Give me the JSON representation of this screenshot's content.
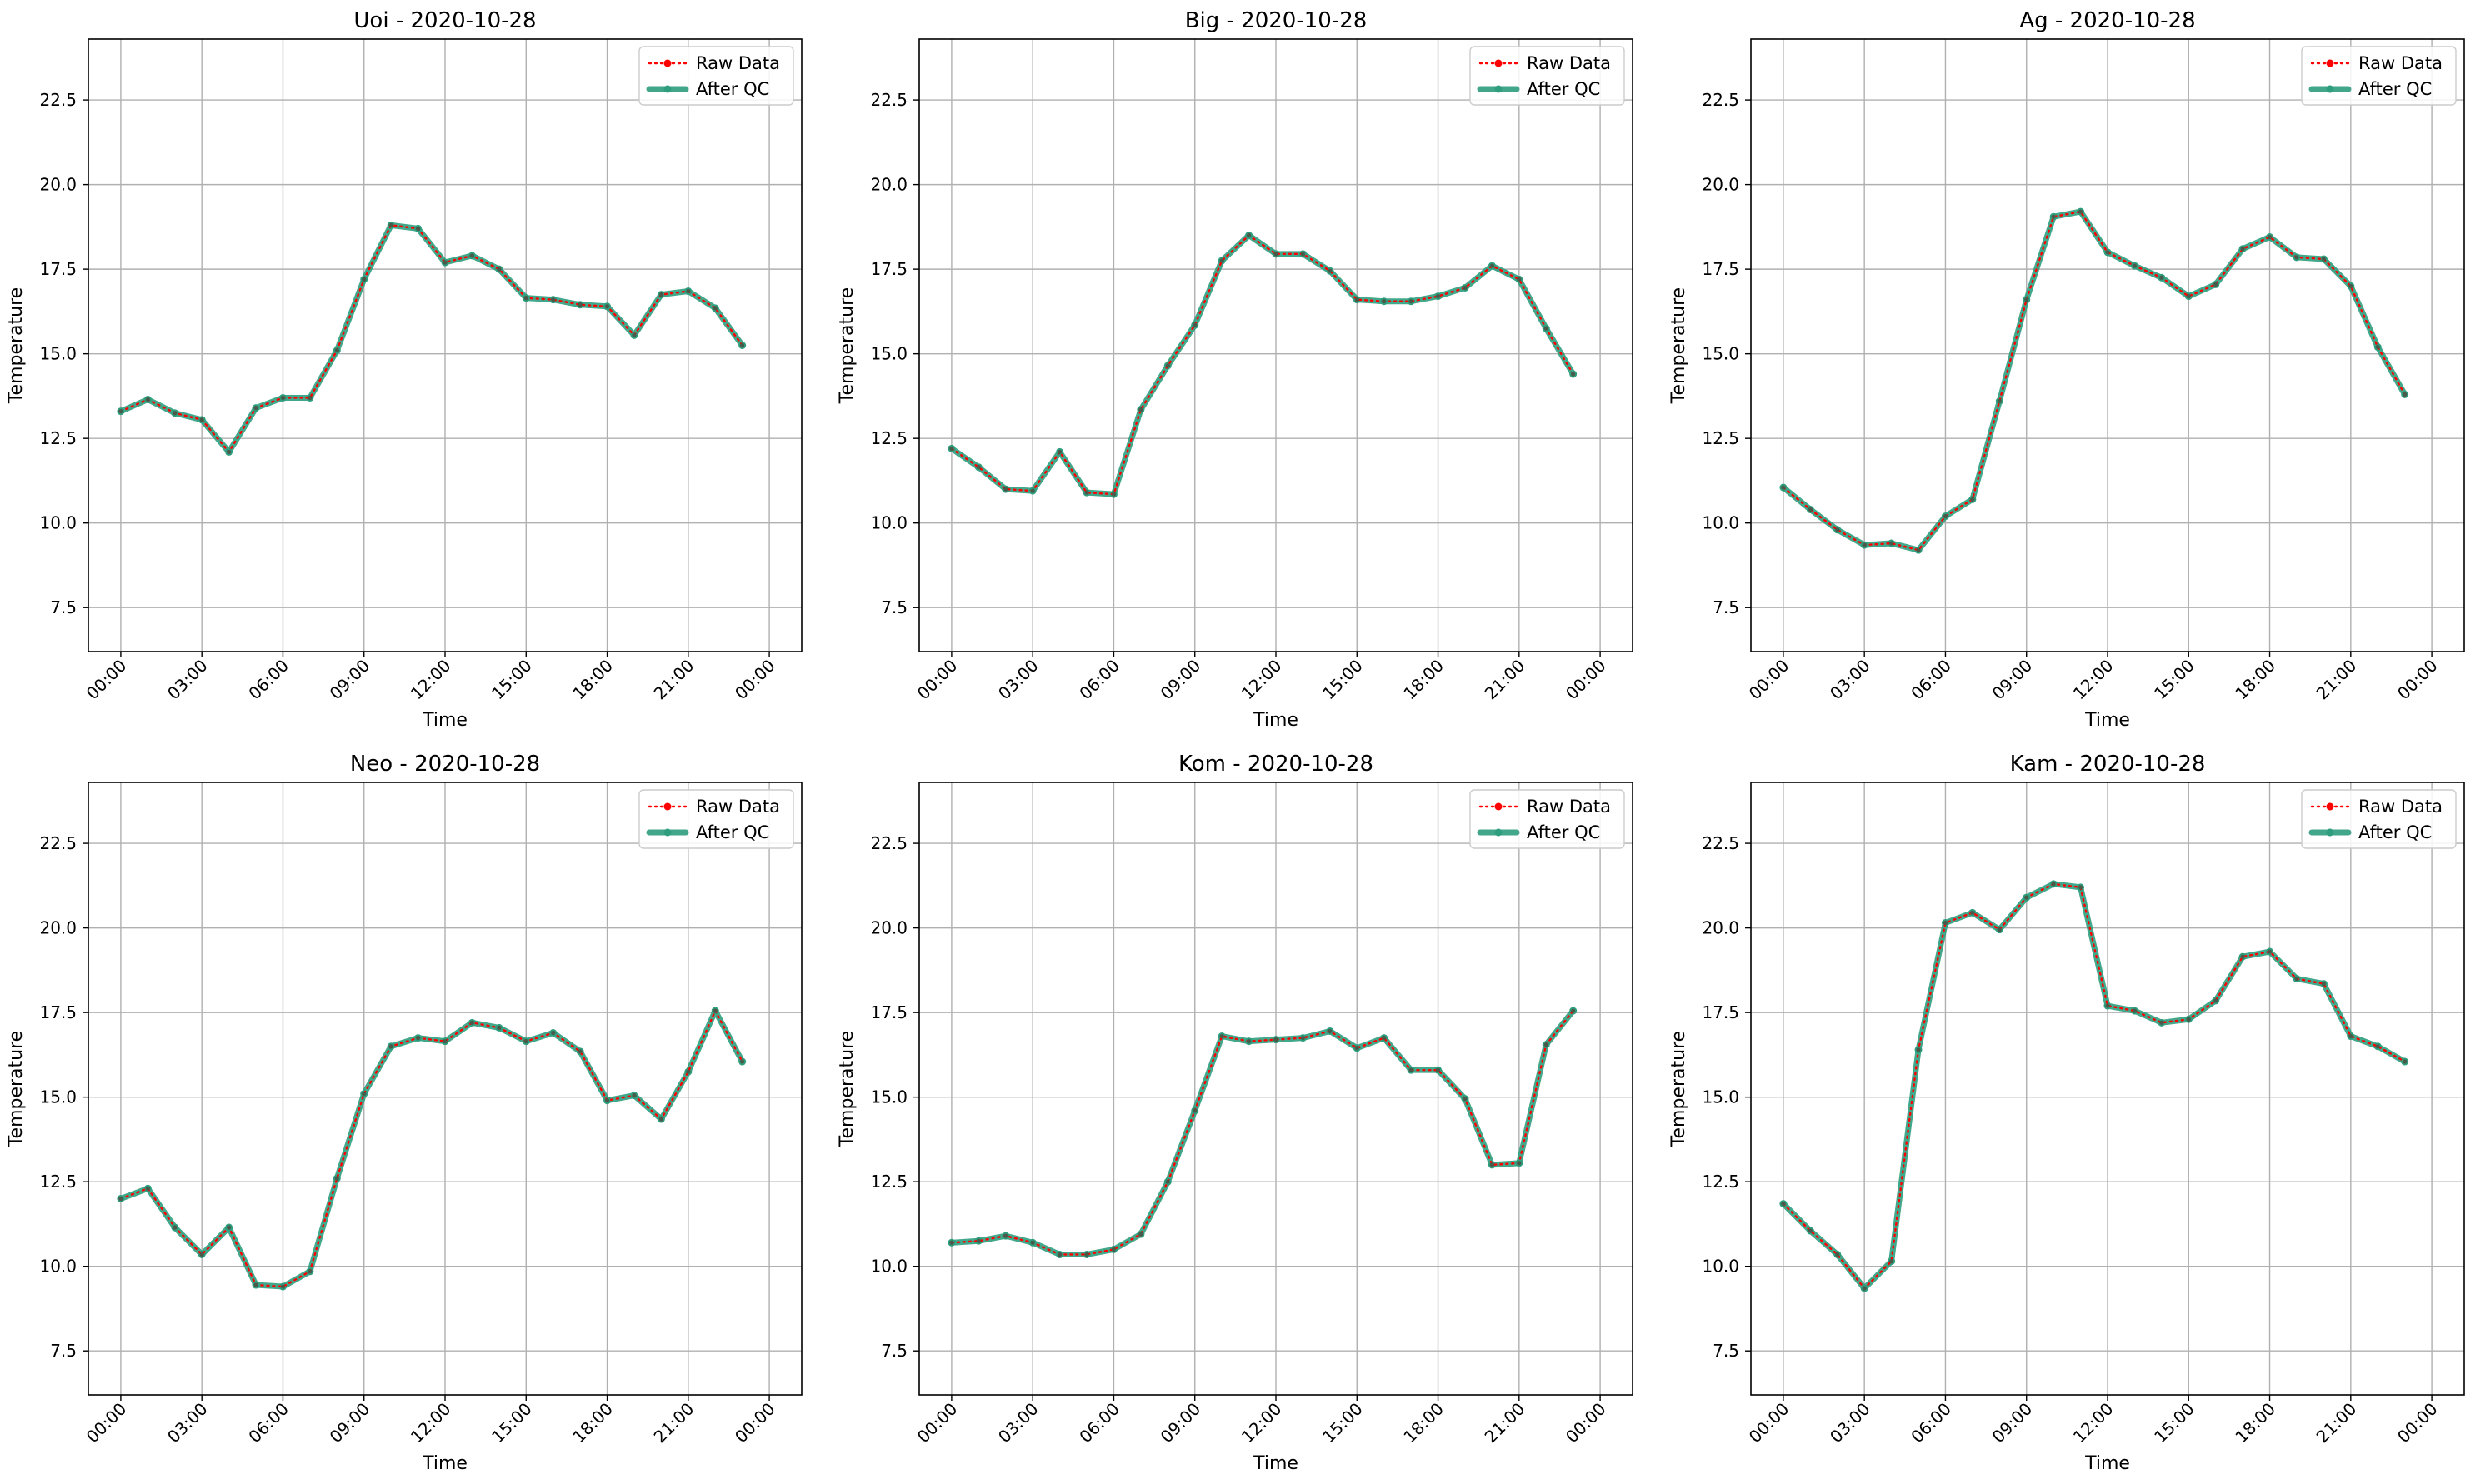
{
  "figure": {
    "background": "#ffffff"
  },
  "colors": {
    "raw": "#ff0000",
    "qc": "#2e9e7e",
    "grid": "#b0b0b0"
  },
  "legend": {
    "raw_label": "Raw Data",
    "qc_label": "After QC"
  },
  "chart_data": [
    {
      "type": "line",
      "title": "Uoi - 2020-10-28",
      "xlabel": "Time",
      "ylabel": "Temperature",
      "x_ticks": [
        "00:00",
        "03:00",
        "06:00",
        "09:00",
        "12:00",
        "15:00",
        "18:00",
        "21:00",
        "00:00"
      ],
      "y_ticks": [
        "7.5",
        "10.0",
        "12.5",
        "15.0",
        "17.5",
        "20.0",
        "22.5"
      ],
      "xlim": [
        "2020-10-28 00:00",
        "2020-10-29 00:00"
      ],
      "ylim": [
        6.2,
        24.3
      ],
      "grid": true,
      "legend_position": "top-right",
      "x": [
        "00:00",
        "01:00",
        "02:00",
        "03:00",
        "04:00",
        "05:00",
        "06:00",
        "07:00",
        "08:00",
        "09:00",
        "10:00",
        "11:00",
        "12:00",
        "13:00",
        "14:00",
        "15:00",
        "16:00",
        "17:00",
        "18:00",
        "19:00",
        "20:00",
        "21:00",
        "22:00",
        "23:00"
      ],
      "series": [
        {
          "name": "Raw Data",
          "values": [
            13.3,
            13.65,
            13.25,
            13.05,
            12.1,
            13.4,
            13.7,
            13.7,
            15.1,
            17.2,
            18.8,
            18.7,
            17.7,
            17.9,
            17.5,
            16.65,
            16.6,
            16.45,
            16.4,
            15.55,
            16.75,
            16.85,
            16.35,
            15.25
          ]
        },
        {
          "name": "After QC",
          "values": [
            13.3,
            13.65,
            13.25,
            13.05,
            12.1,
            13.4,
            13.7,
            13.7,
            15.1,
            17.2,
            18.8,
            18.7,
            17.7,
            17.9,
            17.5,
            16.65,
            16.6,
            16.45,
            16.4,
            15.55,
            16.75,
            16.85,
            16.35,
            15.25
          ]
        }
      ]
    },
    {
      "type": "line",
      "title": "Big - 2020-10-28",
      "xlabel": "Time",
      "ylabel": "Temperature",
      "x_ticks": [
        "00:00",
        "03:00",
        "06:00",
        "09:00",
        "12:00",
        "15:00",
        "18:00",
        "21:00",
        "00:00"
      ],
      "y_ticks": [
        "7.5",
        "10.0",
        "12.5",
        "15.0",
        "17.5",
        "20.0",
        "22.5"
      ],
      "xlim": [
        "2020-10-28 00:00",
        "2020-10-29 00:00"
      ],
      "ylim": [
        6.2,
        24.3
      ],
      "grid": true,
      "legend_position": "top-right",
      "x": [
        "00:00",
        "01:00",
        "02:00",
        "03:00",
        "04:00",
        "05:00",
        "06:00",
        "07:00",
        "08:00",
        "09:00",
        "10:00",
        "11:00",
        "12:00",
        "13:00",
        "14:00",
        "15:00",
        "16:00",
        "17:00",
        "18:00",
        "19:00",
        "20:00",
        "21:00",
        "22:00",
        "23:00"
      ],
      "series": [
        {
          "name": "Raw Data",
          "values": [
            12.2,
            11.65,
            11.0,
            10.95,
            12.1,
            10.9,
            10.85,
            13.35,
            14.65,
            15.85,
            17.75,
            18.5,
            17.95,
            17.95,
            17.45,
            16.6,
            16.55,
            16.55,
            16.7,
            16.95,
            17.6,
            17.2,
            15.75,
            14.4
          ]
        },
        {
          "name": "After QC",
          "values": [
            12.2,
            11.65,
            11.0,
            10.95,
            12.1,
            10.9,
            10.85,
            13.35,
            14.65,
            15.85,
            17.75,
            18.5,
            17.95,
            17.95,
            17.45,
            16.6,
            16.55,
            16.55,
            16.7,
            16.95,
            17.6,
            17.2,
            15.75,
            14.4
          ]
        }
      ]
    },
    {
      "type": "line",
      "title": "Ag - 2020-10-28",
      "xlabel": "Time",
      "ylabel": "Temperature",
      "x_ticks": [
        "00:00",
        "03:00",
        "06:00",
        "09:00",
        "12:00",
        "15:00",
        "18:00",
        "21:00",
        "00:00"
      ],
      "y_ticks": [
        "7.5",
        "10.0",
        "12.5",
        "15.0",
        "17.5",
        "20.0",
        "22.5"
      ],
      "xlim": [
        "2020-10-28 00:00",
        "2020-10-29 00:00"
      ],
      "ylim": [
        6.2,
        24.3
      ],
      "grid": true,
      "legend_position": "top-right",
      "x": [
        "00:00",
        "01:00",
        "02:00",
        "03:00",
        "04:00",
        "05:00",
        "06:00",
        "07:00",
        "08:00",
        "09:00",
        "10:00",
        "11:00",
        "12:00",
        "13:00",
        "14:00",
        "15:00",
        "16:00",
        "17:00",
        "18:00",
        "19:00",
        "20:00",
        "21:00",
        "22:00",
        "23:00"
      ],
      "series": [
        {
          "name": "Raw Data",
          "values": [
            11.05,
            10.4,
            9.8,
            9.35,
            9.4,
            9.2,
            10.2,
            10.7,
            13.6,
            16.6,
            19.05,
            19.2,
            18.0,
            17.6,
            17.25,
            16.7,
            17.05,
            18.1,
            18.45,
            17.85,
            17.8,
            17.0,
            15.2,
            13.8
          ]
        },
        {
          "name": "After QC",
          "values": [
            11.05,
            10.4,
            9.8,
            9.35,
            9.4,
            9.2,
            10.2,
            10.7,
            13.6,
            16.6,
            19.05,
            19.2,
            18.0,
            17.6,
            17.25,
            16.7,
            17.05,
            18.1,
            18.45,
            17.85,
            17.8,
            17.0,
            15.2,
            13.8
          ]
        }
      ]
    },
    {
      "type": "line",
      "title": "Neo - 2020-10-28",
      "xlabel": "Time",
      "ylabel": "Temperature",
      "x_ticks": [
        "00:00",
        "03:00",
        "06:00",
        "09:00",
        "12:00",
        "15:00",
        "18:00",
        "21:00",
        "00:00"
      ],
      "y_ticks": [
        "7.5",
        "10.0",
        "12.5",
        "15.0",
        "17.5",
        "20.0",
        "22.5"
      ],
      "xlim": [
        "2020-10-28 00:00",
        "2020-10-29 00:00"
      ],
      "ylim": [
        6.2,
        24.3
      ],
      "grid": true,
      "legend_position": "top-right",
      "x": [
        "00:00",
        "01:00",
        "02:00",
        "03:00",
        "04:00",
        "05:00",
        "06:00",
        "07:00",
        "08:00",
        "09:00",
        "10:00",
        "11:00",
        "12:00",
        "13:00",
        "14:00",
        "15:00",
        "16:00",
        "17:00",
        "18:00",
        "19:00",
        "20:00",
        "21:00",
        "22:00",
        "23:00"
      ],
      "series": [
        {
          "name": "Raw Data",
          "values": [
            12.0,
            12.3,
            11.15,
            10.35,
            11.15,
            9.45,
            9.4,
            9.85,
            12.6,
            15.1,
            16.5,
            16.75,
            16.65,
            17.2,
            17.05,
            16.65,
            16.9,
            16.35,
            14.9,
            15.05,
            14.35,
            15.75,
            17.55,
            16.05
          ]
        },
        {
          "name": "After QC",
          "values": [
            12.0,
            12.3,
            11.15,
            10.35,
            11.15,
            9.45,
            9.4,
            9.85,
            12.6,
            15.1,
            16.5,
            16.75,
            16.65,
            17.2,
            17.05,
            16.65,
            16.9,
            16.35,
            14.9,
            15.05,
            14.35,
            15.75,
            17.55,
            16.05
          ]
        }
      ]
    },
    {
      "type": "line",
      "title": "Kom - 2020-10-28",
      "xlabel": "Time",
      "ylabel": "Temperature",
      "x_ticks": [
        "00:00",
        "03:00",
        "06:00",
        "09:00",
        "12:00",
        "15:00",
        "18:00",
        "21:00",
        "00:00"
      ],
      "y_ticks": [
        "7.5",
        "10.0",
        "12.5",
        "15.0",
        "17.5",
        "20.0",
        "22.5"
      ],
      "xlim": [
        "2020-10-28 00:00",
        "2020-10-29 00:00"
      ],
      "ylim": [
        6.2,
        24.3
      ],
      "grid": true,
      "legend_position": "top-right",
      "x": [
        "00:00",
        "01:00",
        "02:00",
        "03:00",
        "04:00",
        "05:00",
        "06:00",
        "07:00",
        "08:00",
        "09:00",
        "10:00",
        "11:00",
        "12:00",
        "13:00",
        "14:00",
        "15:00",
        "16:00",
        "17:00",
        "18:00",
        "19:00",
        "20:00",
        "21:00",
        "22:00",
        "23:00"
      ],
      "series": [
        {
          "name": "Raw Data",
          "values": [
            10.7,
            10.75,
            10.9,
            10.7,
            10.35,
            10.35,
            10.5,
            10.95,
            12.5,
            14.6,
            16.8,
            16.65,
            16.7,
            16.75,
            16.95,
            16.45,
            16.75,
            15.8,
            15.8,
            14.95,
            13.0,
            13.05,
            16.55,
            17.55
          ]
        },
        {
          "name": "After QC",
          "values": [
            10.7,
            10.75,
            10.9,
            10.7,
            10.35,
            10.35,
            10.5,
            10.95,
            12.5,
            14.6,
            16.8,
            16.65,
            16.7,
            16.75,
            16.95,
            16.45,
            16.75,
            15.8,
            15.8,
            14.95,
            13.0,
            13.05,
            16.55,
            17.55
          ]
        }
      ]
    },
    {
      "type": "line",
      "title": "Kam - 2020-10-28",
      "xlabel": "Time",
      "ylabel": "Temperature",
      "x_ticks": [
        "00:00",
        "03:00",
        "06:00",
        "09:00",
        "12:00",
        "15:00",
        "18:00",
        "21:00",
        "00:00"
      ],
      "y_ticks": [
        "7.5",
        "10.0",
        "12.5",
        "15.0",
        "17.5",
        "20.0",
        "22.5"
      ],
      "xlim": [
        "2020-10-28 00:00",
        "2020-10-29 00:00"
      ],
      "ylim": [
        6.2,
        24.3
      ],
      "grid": true,
      "legend_position": "top-right",
      "x": [
        "00:00",
        "01:00",
        "02:00",
        "03:00",
        "04:00",
        "05:00",
        "06:00",
        "07:00",
        "08:00",
        "09:00",
        "10:00",
        "11:00",
        "12:00",
        "13:00",
        "14:00",
        "15:00",
        "16:00",
        "17:00",
        "18:00",
        "19:00",
        "20:00",
        "21:00",
        "22:00",
        "23:00"
      ],
      "series": [
        {
          "name": "Raw Data",
          "values": [
            11.85,
            11.05,
            10.35,
            9.35,
            10.15,
            16.4,
            20.15,
            20.45,
            19.95,
            20.9,
            21.3,
            21.2,
            17.7,
            17.55,
            17.2,
            17.3,
            17.85,
            19.15,
            19.3,
            18.5,
            18.35,
            16.8,
            16.5,
            16.05
          ]
        },
        {
          "name": "After QC",
          "values": [
            11.85,
            11.05,
            10.35,
            9.35,
            10.15,
            16.4,
            20.15,
            20.45,
            19.95,
            20.9,
            21.3,
            21.2,
            17.7,
            17.55,
            17.2,
            17.3,
            17.85,
            19.15,
            19.3,
            18.5,
            18.35,
            16.8,
            16.5,
            16.05
          ]
        }
      ]
    }
  ]
}
